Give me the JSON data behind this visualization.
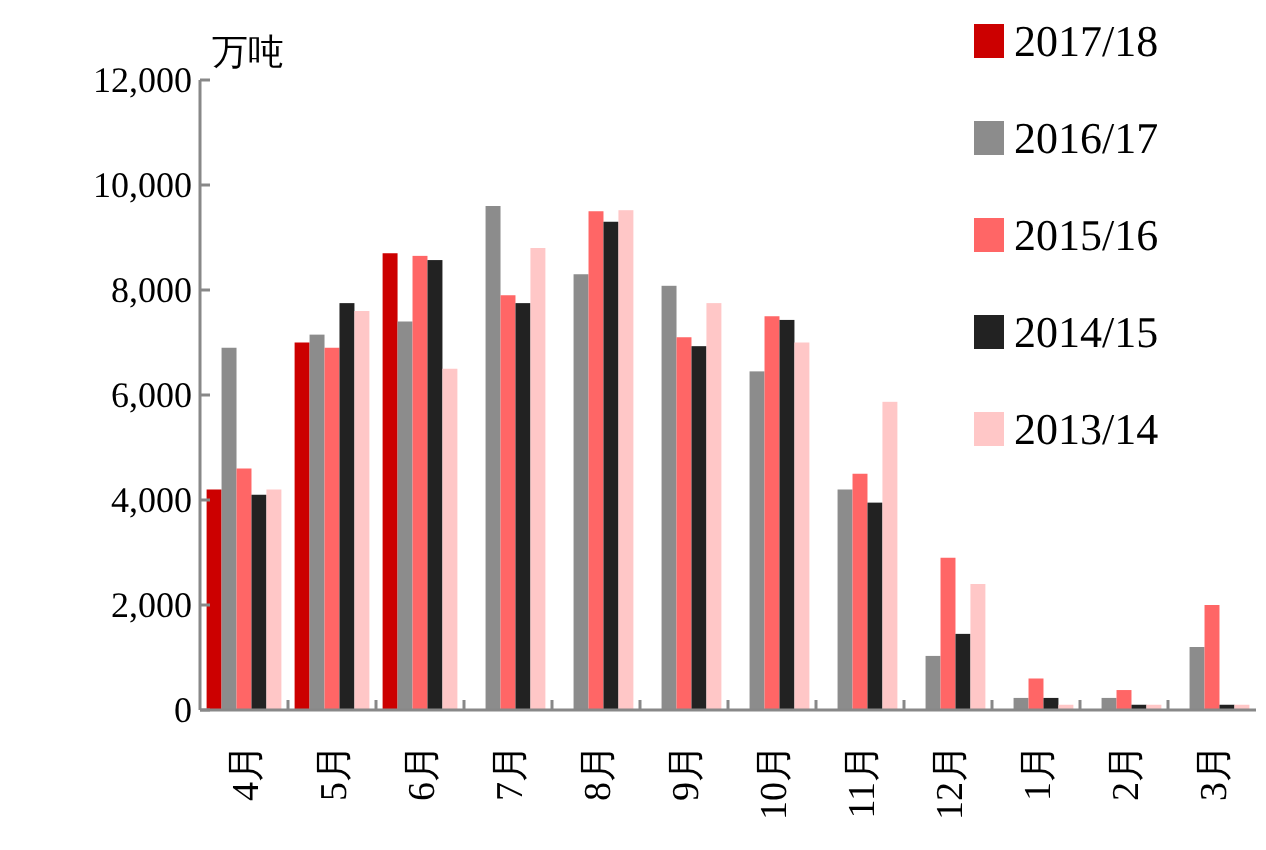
{
  "chart_data": {
    "type": "bar",
    "ylabel": "万吨",
    "categories": [
      "4月",
      "5月",
      "6月",
      "7月",
      "8月",
      "9月",
      "10月",
      "11月",
      "12月",
      "1月",
      "2月",
      "3月"
    ],
    "series": [
      {
        "name": "2017/18",
        "color": "#cc0000",
        "values": [
          4200,
          7000,
          8700,
          null,
          null,
          null,
          null,
          null,
          null,
          null,
          null,
          null
        ]
      },
      {
        "name": "2016/17",
        "color": "#8c8c8c",
        "values": [
          6900,
          7150,
          7400,
          9600,
          8300,
          8080,
          6450,
          4200,
          1030,
          230,
          230,
          1200
        ]
      },
      {
        "name": "2015/16",
        "color": "#ff6666",
        "values": [
          4600,
          6900,
          8650,
          7900,
          9500,
          7100,
          7500,
          4500,
          2900,
          600,
          380,
          2000
        ]
      },
      {
        "name": "2014/15",
        "color": "#222222",
        "values": [
          4100,
          7750,
          8570,
          7750,
          9300,
          6930,
          7430,
          3950,
          1450,
          230,
          100,
          100
        ]
      },
      {
        "name": "2013/14",
        "color": "#ffc7c7",
        "values": [
          4200,
          7600,
          6500,
          8800,
          9520,
          7750,
          7000,
          5870,
          2400,
          100,
          100,
          100
        ]
      }
    ],
    "ylim": [
      0,
      12000
    ],
    "yticks": [
      0,
      {
        "value": 2000,
        "label": "2,000"
      },
      {
        "value": 4000,
        "label": "4,000"
      },
      {
        "value": 6000,
        "label": "6,000"
      },
      {
        "value": 8000,
        "label": "8,000"
      },
      {
        "value": 10000,
        "label": "10,000"
      },
      {
        "value": 12000,
        "label": "12,000"
      }
    ],
    "grid": false,
    "legend": "top right"
  }
}
